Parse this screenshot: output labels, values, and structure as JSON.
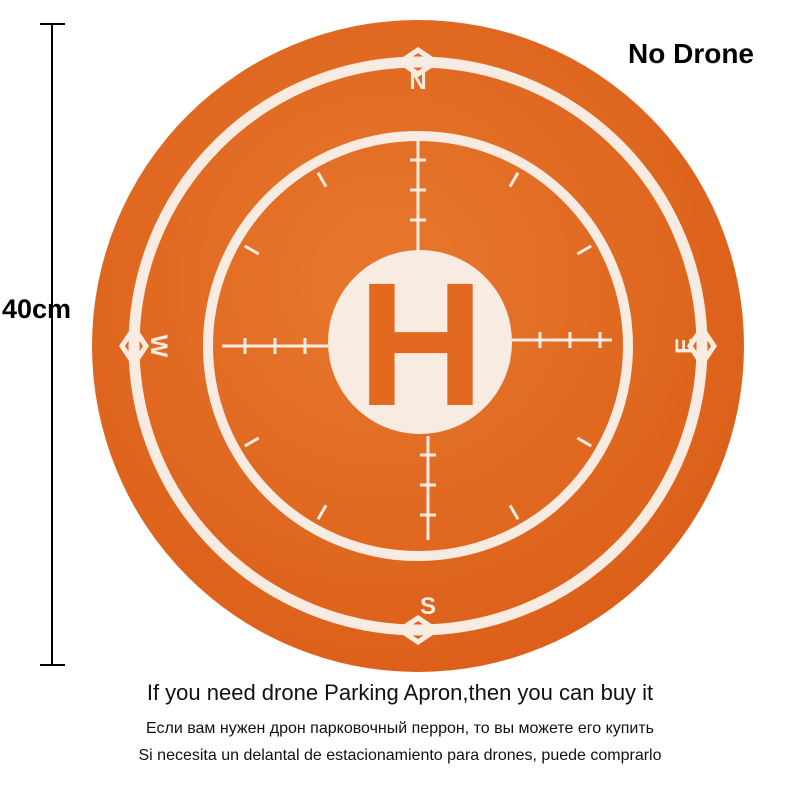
{
  "scale": {
    "label": "40cm"
  },
  "brand": "No Drone",
  "pad": {
    "center_letter": "H",
    "compass": {
      "north": "N",
      "south": "S",
      "east": "E",
      "west": "W"
    },
    "colors": {
      "pad": "#e2691f",
      "markings": "#f8ece2"
    }
  },
  "captions": {
    "english": "If you need drone Parking Apron,then you can buy it",
    "russian": "Если вам нужен дрон парковочный перрон, то вы можете его купить",
    "spanish": "Si necesita un delantal de estacionamiento para drones, puede comprarlo"
  }
}
